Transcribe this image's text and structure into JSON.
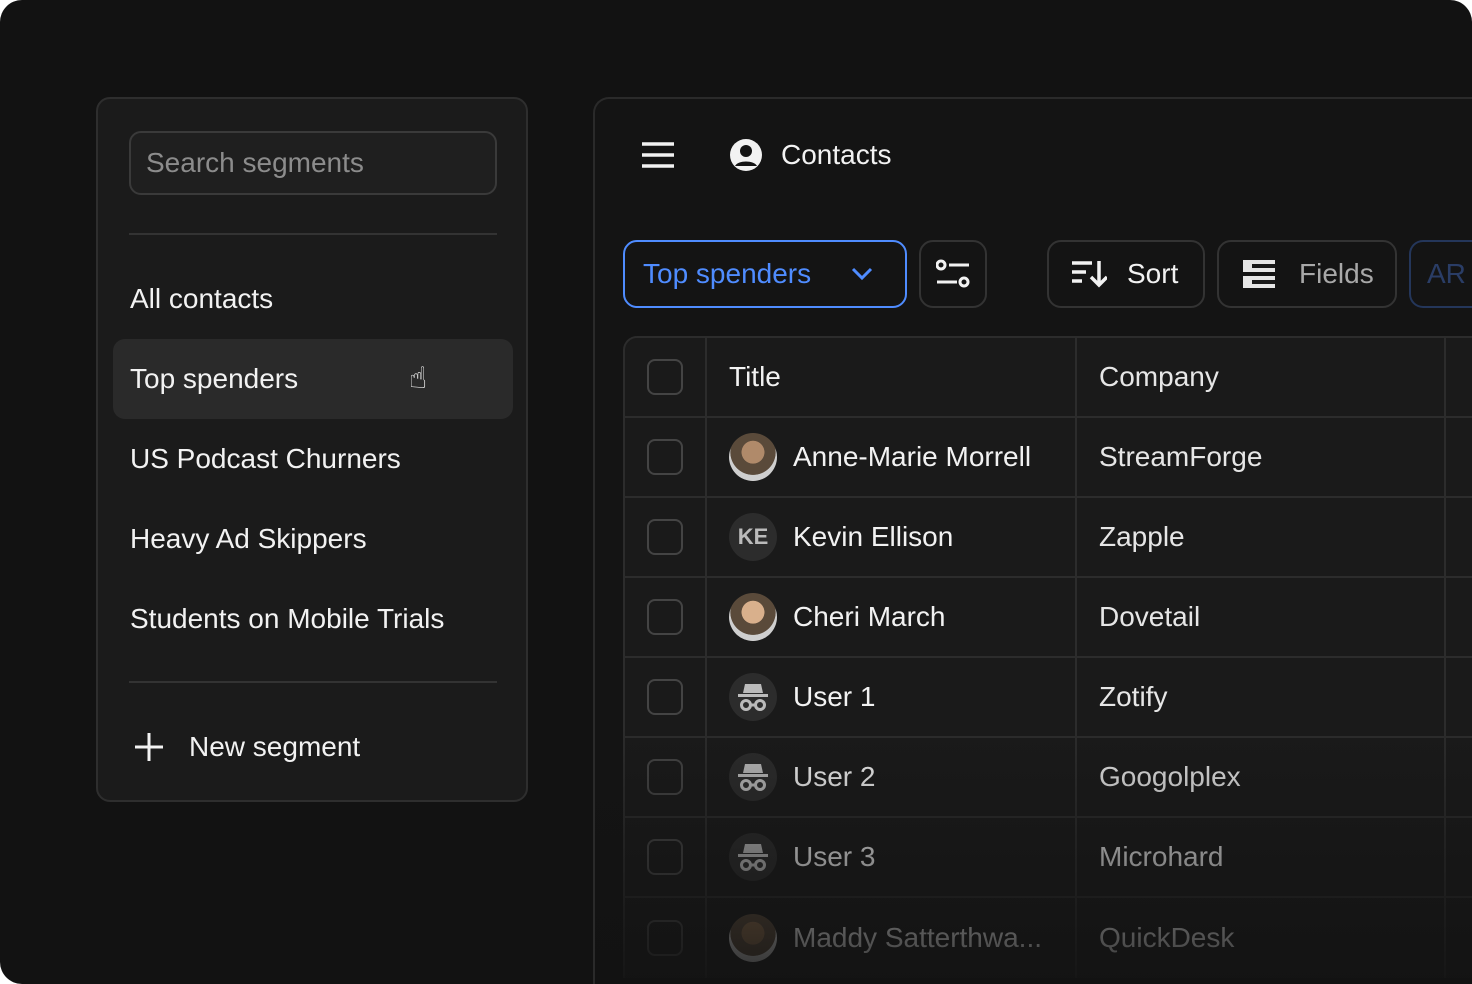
{
  "sidebar": {
    "search_placeholder": "Search segments",
    "segments": [
      {
        "label": "All contacts"
      },
      {
        "label": "Top spenders",
        "active": true
      },
      {
        "label": "US Podcast Churners"
      },
      {
        "label": "Heavy Ad Skippers"
      },
      {
        "label": "Students on Mobile Trials"
      }
    ],
    "new_segment": "New segment"
  },
  "header": {
    "title": "Contacts"
  },
  "toolbar": {
    "segment_select": "Top spenders",
    "sort": "Sort",
    "fields": "Fields",
    "partial_button": "AR",
    "accent": "#4f8cff"
  },
  "table": {
    "columns": [
      "Title",
      "Company"
    ],
    "rows": [
      {
        "name": "Anne-Marie Morrell",
        "company": "StreamForge",
        "avatar": "photo"
      },
      {
        "name": "Kevin Ellison",
        "company": "Zapple",
        "avatar": "KE"
      },
      {
        "name": "Cheri March",
        "company": "Dovetail",
        "avatar": "photo"
      },
      {
        "name": "User 1",
        "company": "Zotify",
        "avatar": "incognito-icon"
      },
      {
        "name": "User 2",
        "company": "Googolplex",
        "avatar": "incognito-icon"
      },
      {
        "name": "User 3",
        "company": "Microhard",
        "avatar": "incognito-icon"
      },
      {
        "name": "Maddy Satterthwa...",
        "company": "QuickDesk",
        "avatar": "photo"
      }
    ]
  }
}
